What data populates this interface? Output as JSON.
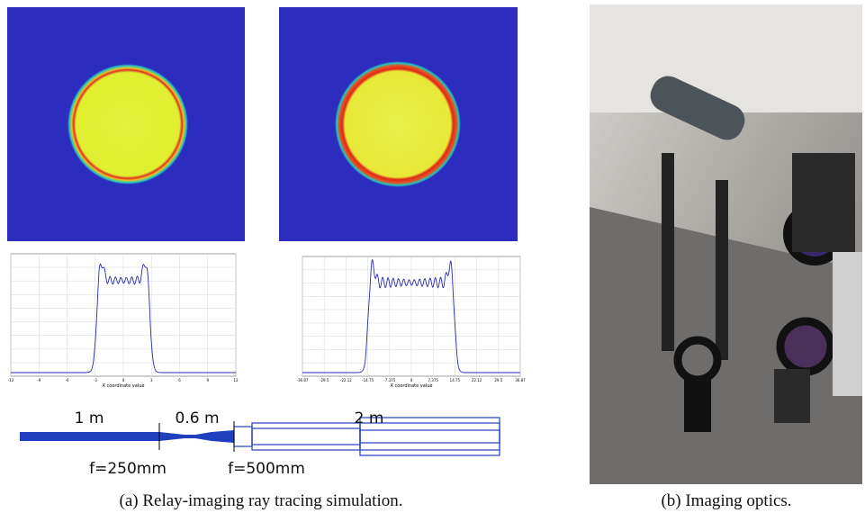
{
  "panel_a": {
    "plots": [
      {
        "xlabel": "X coordinate value",
        "xticks": [
          "-12",
          "-9",
          "-6",
          "-3",
          "0",
          "3",
          "6",
          "9",
          "12"
        ]
      },
      {
        "xlabel": "X coordinate value",
        "xticks": [
          "-36.87",
          "-29.5",
          "-22.12",
          "-14.75",
          "-7.375",
          "0",
          "7.375",
          "14.75",
          "22.12",
          "29.5",
          "36.87"
        ]
      }
    ],
    "beam": {
      "distances": [
        "1 m",
        "0.6 m",
        "2 m"
      ],
      "focal_lengths": [
        "f=250mm",
        "f=500mm"
      ]
    },
    "caption": "(a) Relay-imaging ray tracing simulation."
  },
  "panel_b": {
    "caption": "(b) Imaging optics."
  }
}
